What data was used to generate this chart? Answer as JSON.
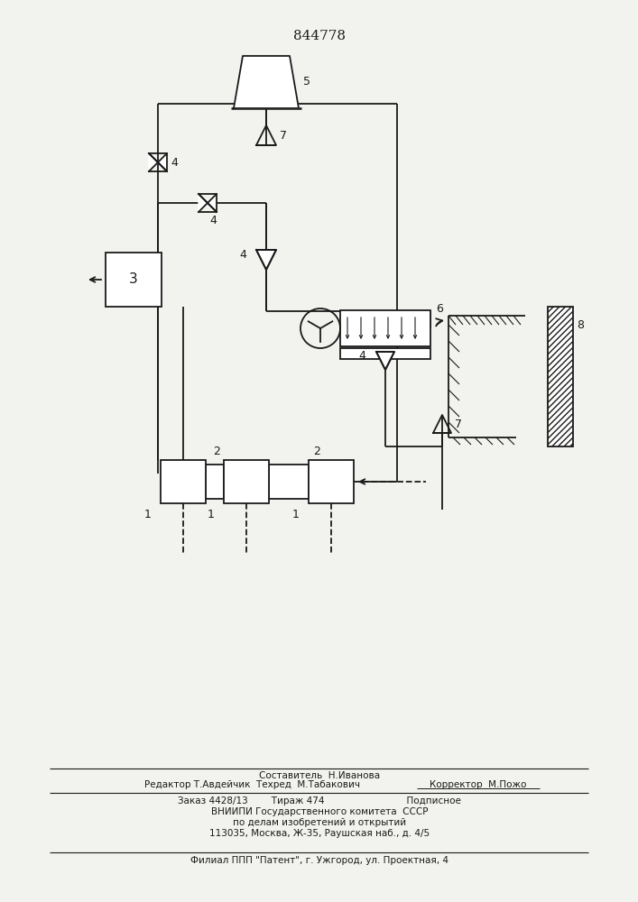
{
  "title": "844778",
  "bg_color": "#f2f2ee",
  "line_color": "#1a1a1a",
  "lw": 1.3,
  "footer": {
    "line1": "Составитель  Н.Иванова",
    "line2a": "Редактор Т.Авдейчик  Техред  М.Табакович",
    "line2b": "Корректор  М.Пожо",
    "line3": "Заказ 4428/13        Тираж 474                            Подписное",
    "line4": "ВНИИПИ Государственного комитета  СССР",
    "line5": "по делам изобретений и открытий",
    "line6": "113035, Москва, Ж-35, Раушская наб., д. 4/5",
    "line7": "Филиал ППП \"Патент\", г. Ужгород, ул. Проектная, 4"
  }
}
